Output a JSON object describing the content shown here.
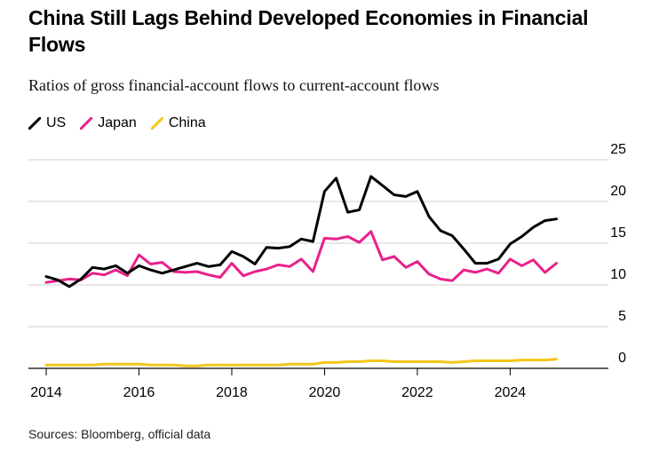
{
  "header": {
    "title": "China Still Lags Behind Developed Economies in Financial Flows",
    "subtitle": "Ratios of gross financial-account flows to current-account flows"
  },
  "footer": {
    "source": "Sources: Bloomberg, official data"
  },
  "chart_data": {
    "type": "line",
    "title": "China Still Lags Behind Developed Economies in Financial Flows",
    "subtitle": "Ratios of gross financial-account flows to current-account flows",
    "xlabel": "",
    "ylabel": "",
    "ylim": [
      0,
      25
    ],
    "xlim": [
      2014,
      2026.5
    ],
    "y_ticks": [
      25,
      20,
      15,
      10,
      5,
      0
    ],
    "x_ticks": [
      "2014",
      "2016",
      "2018",
      "2020",
      "2022",
      "2024"
    ],
    "grid": "horizontal",
    "legend": "top-left",
    "x": [
      2014.0,
      2014.25,
      2014.5,
      2014.75,
      2015.0,
      2015.25,
      2015.5,
      2015.75,
      2016.0,
      2016.25,
      2016.5,
      2016.75,
      2017.0,
      2017.25,
      2017.5,
      2017.75,
      2018.0,
      2018.25,
      2018.5,
      2018.75,
      2019.0,
      2019.25,
      2019.5,
      2019.75,
      2020.0,
      2020.25,
      2020.5,
      2020.75,
      2021.0,
      2021.25,
      2021.5,
      2021.75,
      2022.0,
      2022.25,
      2022.5,
      2022.75,
      2023.0,
      2023.25,
      2023.5,
      2023.75,
      2024.0,
      2024.25,
      2024.5,
      2024.75,
      2025.0,
      2025.25
    ],
    "series": [
      {
        "name": "US",
        "color": "#000000",
        "values": [
          11.0,
          10.6,
          9.8,
          10.7,
          12.1,
          11.9,
          12.3,
          11.4,
          12.3,
          11.8,
          11.4,
          11.8,
          12.2,
          12.6,
          12.2,
          12.4,
          14.0,
          13.4,
          12.5,
          14.5,
          14.4,
          14.6,
          15.5,
          15.2,
          21.2,
          22.8,
          18.7,
          19.0,
          23.0,
          21.9,
          20.8,
          20.6,
          21.2,
          18.2,
          16.5,
          15.9,
          14.3,
          12.6,
          12.6,
          13.1,
          14.9,
          15.8,
          16.9,
          17.7,
          17.9,
          null
        ],
        "note": "US series ends at 2025.0"
      },
      {
        "name": "Japan",
        "color": "#e8218c",
        "values": [
          10.3,
          10.5,
          10.7,
          10.6,
          11.4,
          11.2,
          11.8,
          11.1,
          13.6,
          12.5,
          12.7,
          11.6,
          11.5,
          11.6,
          11.2,
          10.9,
          12.6,
          11.1,
          11.6,
          11.9,
          12.4,
          12.2,
          13.1,
          11.6,
          15.6,
          15.5,
          15.8,
          15.1,
          16.4,
          13.0,
          13.4,
          12.1,
          12.8,
          11.3,
          10.7,
          10.5,
          11.8,
          11.5,
          11.9,
          11.4,
          13.1,
          12.3,
          13.0,
          11.5,
          12.6,
          null
        ]
      },
      {
        "name": "China",
        "color": "#f5c518",
        "values": [
          0.4,
          0.4,
          0.4,
          0.4,
          0.4,
          0.5,
          0.5,
          0.5,
          0.5,
          0.4,
          0.4,
          0.4,
          0.3,
          0.3,
          0.4,
          0.4,
          0.4,
          0.4,
          0.4,
          0.4,
          0.4,
          0.5,
          0.5,
          0.5,
          0.7,
          0.7,
          0.8,
          0.8,
          0.9,
          0.9,
          0.8,
          0.8,
          0.8,
          0.8,
          0.8,
          0.7,
          0.8,
          0.9,
          0.9,
          0.9,
          0.9,
          1.0,
          1.0,
          1.0,
          1.1,
          null
        ]
      }
    ]
  }
}
